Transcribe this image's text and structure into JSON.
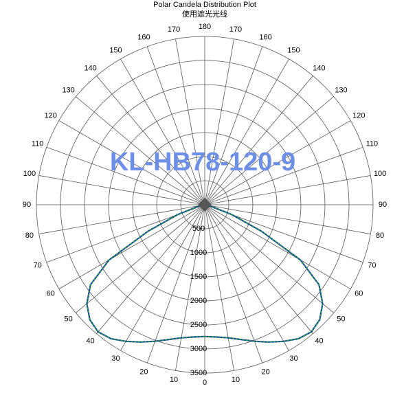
{
  "chart_data": {
    "type": "polar",
    "title": "Polar Candela Distribution Plot",
    "subtitle": "使用遮光光线",
    "watermark": "KL-HB78-120-9",
    "angle_ticks": [
      0,
      10,
      20,
      30,
      40,
      50,
      60,
      70,
      80,
      90,
      100,
      110,
      120,
      130,
      140,
      150,
      160,
      170,
      180
    ],
    "rlim": [
      0,
      3500
    ],
    "rticks": [
      500,
      1000,
      1500,
      2000,
      2500,
      3000,
      3500
    ],
    "x": [
      0,
      5,
      10,
      15,
      20,
      25,
      30,
      35,
      40,
      45,
      50,
      55,
      60,
      65,
      70,
      75,
      80,
      85,
      90
    ],
    "series": [
      {
        "color": "#1fbf3a",
        "values": [
          2740,
          2760,
          2810,
          2900,
          3020,
          3150,
          3280,
          3400,
          3450,
          3380,
          3200,
          2900,
          2300,
          1300,
          600,
          150,
          20,
          0,
          0
        ]
      }
    ],
    "grid": true
  }
}
